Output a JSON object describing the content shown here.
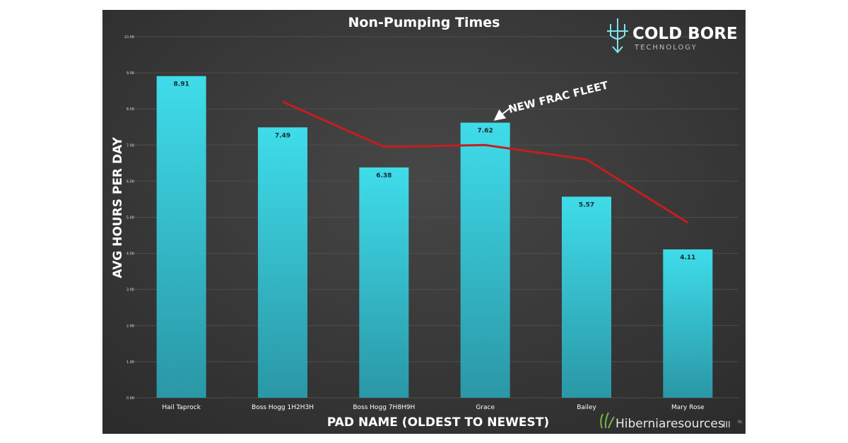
{
  "chart_data": {
    "type": "bar",
    "title": "Non-Pumping Times",
    "xlabel": "PAD NAME (OLDEST TO NEWEST)",
    "ylabel": "AVG HOURS PER DAY",
    "ylim": [
      0,
      10
    ],
    "yticks": [
      "0.00",
      "1.00",
      "2.00",
      "3.00",
      "4.00",
      "5.00",
      "6.00",
      "7.00",
      "8.00",
      "9.00",
      "10.00"
    ],
    "categories": [
      "Hail Taprock",
      "Boss Hogg 1H2H3H",
      "Boss Hogg 7H8H9H",
      "Grace",
      "Bailey",
      "Mary Rose"
    ],
    "series": [
      {
        "name": "Avg Hours Per Day",
        "type": "bar",
        "values": [
          8.91,
          7.49,
          6.38,
          7.62,
          5.57,
          4.11
        ],
        "data_labels": [
          "8.91",
          "7.49",
          "6.38",
          "7.62",
          "5.57",
          "4.11"
        ]
      },
      {
        "name": "Trend",
        "type": "line",
        "values": [
          null,
          8.2,
          6.95,
          7.0,
          6.6,
          4.85
        ]
      }
    ],
    "annotation": "NEW FRAC FLEET",
    "colors": {
      "background": "#3a3a3a",
      "bar_top": "#3fdcea",
      "bar_bottom": "#2a97a6",
      "line": "#c41e1e",
      "text": "#ffffff"
    }
  },
  "logos": {
    "cold_bore": {
      "line1": "COLD BORE",
      "line2": "TECHNOLOGY"
    },
    "hiberniaresources": {
      "text": "Hiberniaresources",
      "suffix": "III",
      "mark": "llc"
    }
  }
}
